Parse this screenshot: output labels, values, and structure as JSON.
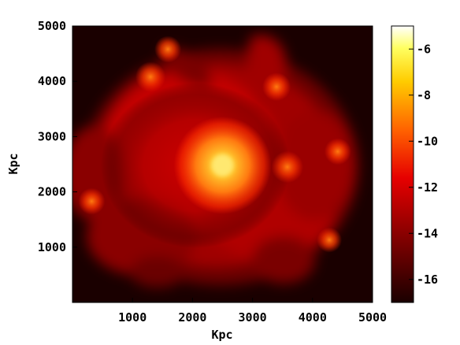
{
  "chart_data": {
    "type": "heatmap",
    "xlabel": "Kpc",
    "ylabel": "Kpc",
    "xlim": [
      0,
      5000
    ],
    "ylim": [
      0,
      5000
    ],
    "xticks": [
      1000,
      2000,
      3000,
      4000,
      5000
    ],
    "yticks": [
      1000,
      2000,
      3000,
      4000,
      5000
    ],
    "colorbar": {
      "range": [
        -17,
        -5
      ],
      "ticks": [
        -6,
        -8,
        -10,
        -12,
        -14,
        -16
      ],
      "colormap": "hot"
    },
    "features": [
      {
        "kind": "core",
        "x": 2500,
        "y": 2480,
        "value": -6.5
      },
      {
        "kind": "clump",
        "x": 3580,
        "y": 2450,
        "value": -10.5
      },
      {
        "kind": "clump",
        "x": 320,
        "y": 1830,
        "value": -12
      },
      {
        "kind": "clump",
        "x": 1590,
        "y": 4580,
        "value": -12
      },
      {
        "kind": "clump",
        "x": 4420,
        "y": 2730,
        "value": -12
      },
      {
        "kind": "clump",
        "x": 3400,
        "y": 3900,
        "value": -11.5
      },
      {
        "kind": "clump",
        "x": 1300,
        "y": 4080,
        "value": -11
      },
      {
        "kind": "clump",
        "x": 4280,
        "y": 1130,
        "value": -12.5
      }
    ]
  }
}
